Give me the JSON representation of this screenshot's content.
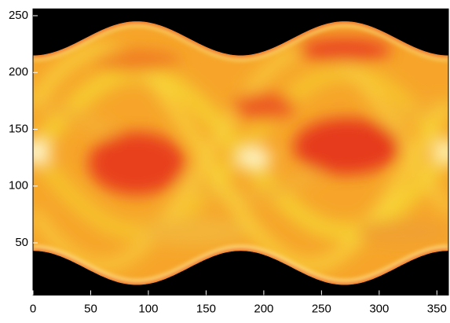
{
  "chart_data": {
    "type": "heatmap",
    "xlim": [
      0,
      360
    ],
    "xticks": [
      0,
      50,
      100,
      150,
      200,
      250,
      300,
      350
    ],
    "ylim": [
      4,
      256
    ],
    "yticks": [
      50,
      100,
      150,
      200,
      250
    ]
  }
}
